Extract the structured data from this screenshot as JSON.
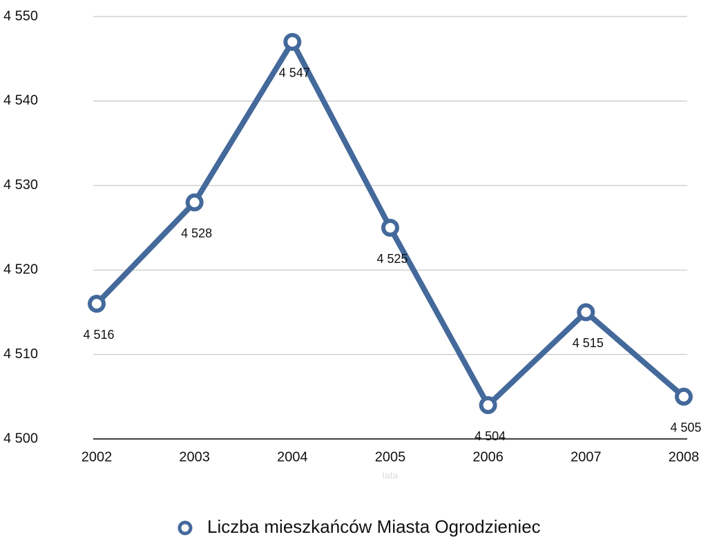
{
  "chart_data": {
    "type": "line",
    "x_label": "lata",
    "categories": [
      "2002",
      "2003",
      "2004",
      "2005",
      "2006",
      "2007",
      "2008"
    ],
    "series": [
      {
        "name": "Liczba mieszkańców Miasta Ogrodzieniec",
        "color": "#44699b",
        "values": [
          4516,
          4528,
          4547,
          4525,
          4504,
          4515,
          4505
        ],
        "value_labels": [
          "4 516",
          "4 528",
          "4 547",
          "4 525",
          "4 504",
          "4 515",
          "4 505"
        ]
      }
    ],
    "ylim": [
      4500,
      4550
    ],
    "yticks": [
      {
        "value": 4500,
        "label": "4 500"
      },
      {
        "value": 4510,
        "label": "4 510"
      },
      {
        "value": 4520,
        "label": "4 520"
      },
      {
        "value": 4530,
        "label": "4 530"
      },
      {
        "value": 4540,
        "label": "4 540"
      },
      {
        "value": 4550,
        "label": "4 550"
      }
    ],
    "grid": true,
    "legend": "bottom"
  }
}
